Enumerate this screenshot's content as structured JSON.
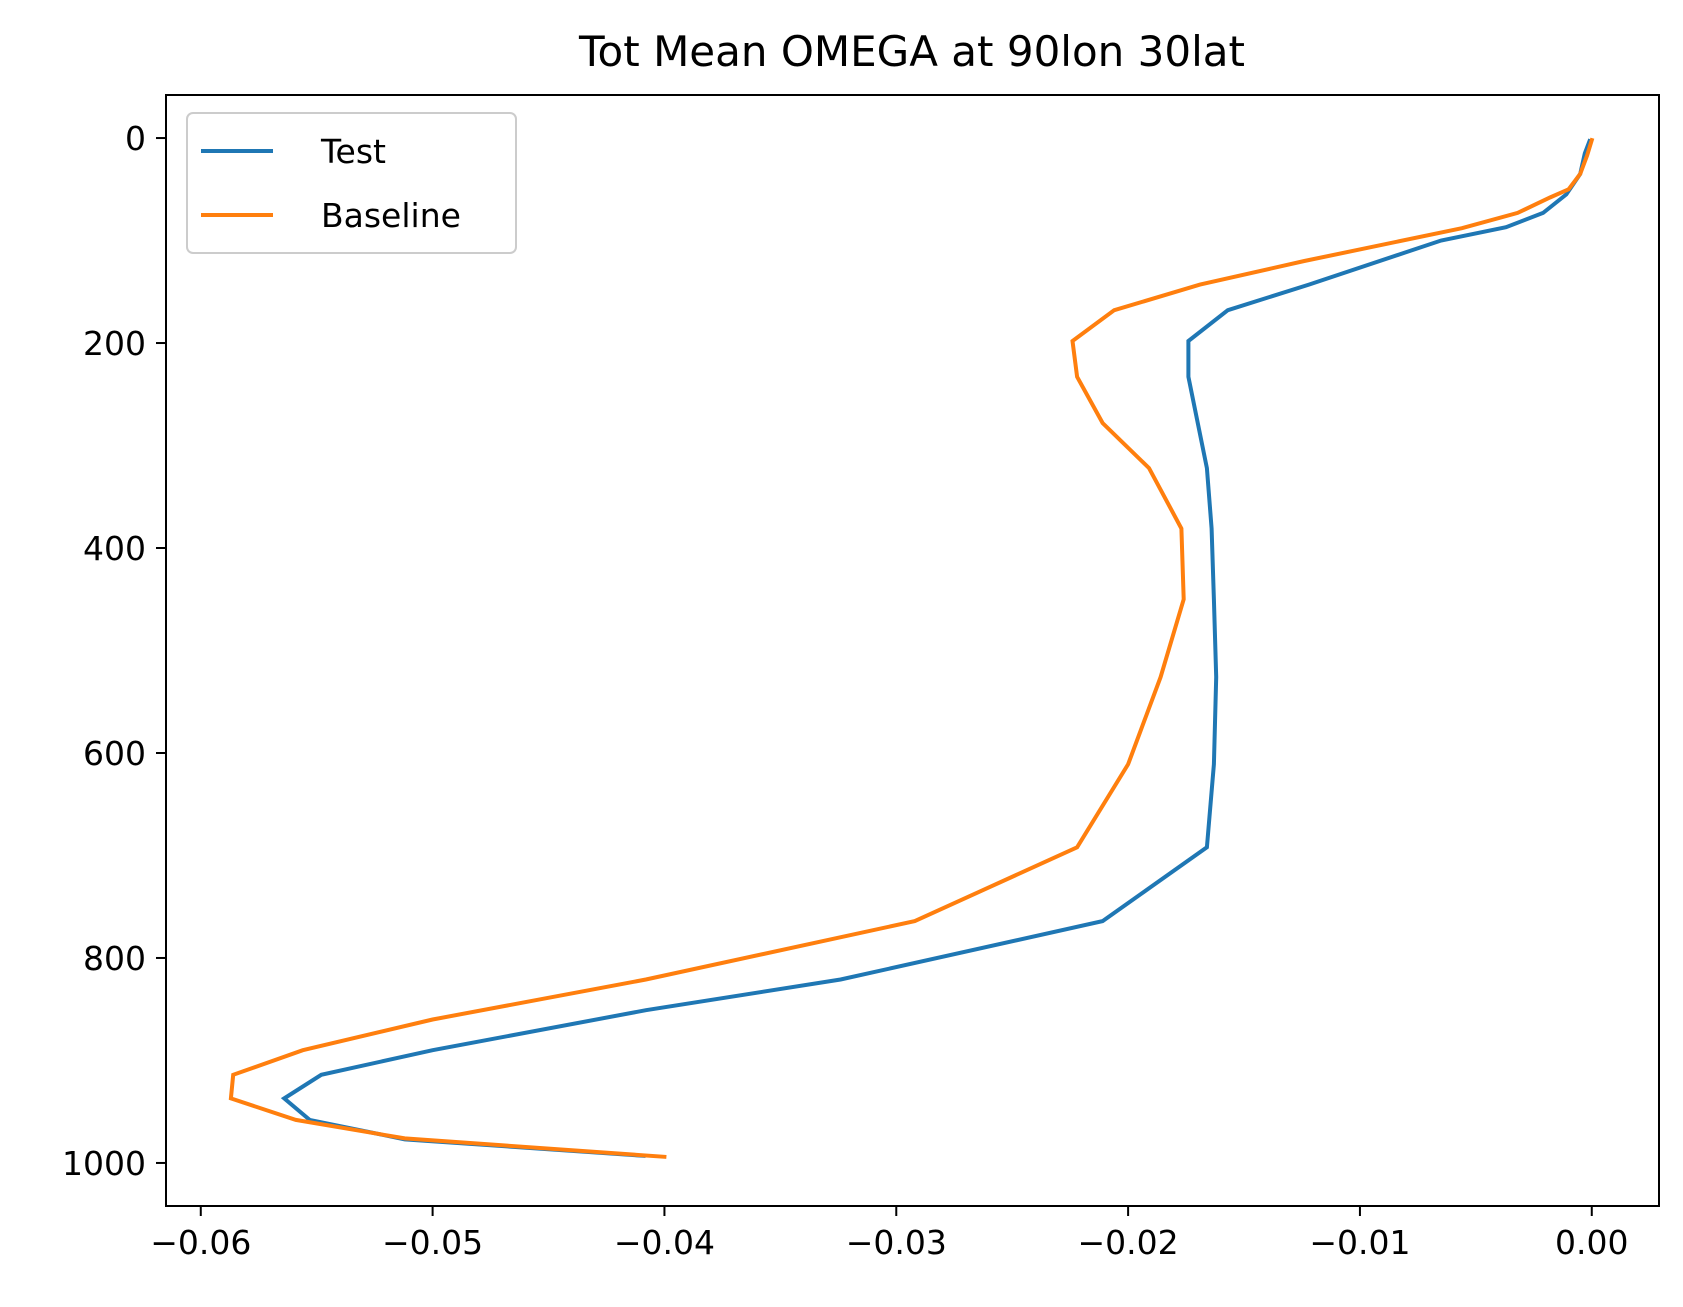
{
  "chart_data": {
    "type": "line",
    "title": "Tot Mean OMEGA at 90lon 30lat",
    "xlabel": "",
    "ylabel": "",
    "xlim": [
      -0.0615,
      0.0029
    ],
    "ylim": [
      1042,
      -42
    ],
    "y_inverted": true,
    "grid": false,
    "legend_position": "upper-left",
    "xticks": [
      {
        "value": -0.06,
        "label": "−0.06"
      },
      {
        "value": -0.05,
        "label": "−0.05"
      },
      {
        "value": -0.04,
        "label": "−0.04"
      },
      {
        "value": -0.03,
        "label": "−0.03"
      },
      {
        "value": -0.02,
        "label": "−0.02"
      },
      {
        "value": -0.01,
        "label": "−0.01"
      },
      {
        "value": 0.0,
        "label": "0.00"
      }
    ],
    "yticks": [
      {
        "value": 0,
        "label": "0"
      },
      {
        "value": 200,
        "label": "200"
      },
      {
        "value": 400,
        "label": "400"
      },
      {
        "value": 600,
        "label": "600"
      },
      {
        "value": 800,
        "label": "800"
      },
      {
        "value": 1000,
        "label": "1000"
      }
    ],
    "series": [
      {
        "name": "Test",
        "color": "#1f77b4",
        "x": [
          -0.0001,
          -0.0003,
          -0.0005,
          -0.0011,
          -0.0021,
          -0.0037,
          -0.0065,
          -0.0122,
          -0.0157,
          -0.0174,
          -0.0174,
          -0.0166,
          -0.0164,
          -0.0163,
          -0.0162,
          -0.0163,
          -0.0166,
          -0.0211,
          -0.0324,
          -0.0408,
          -0.05,
          -0.0548,
          -0.0564,
          -0.0553,
          -0.0512,
          -0.0409
        ],
        "y": [
          3,
          15,
          35,
          55,
          73,
          87,
          100,
          143,
          168,
          198,
          233,
          322,
          381,
          450,
          526,
          611,
          692,
          764,
          821,
          851,
          890,
          914,
          937,
          958,
          977,
          993
        ]
      },
      {
        "name": "Baseline",
        "color": "#ff7f0e",
        "x": [
          0.0,
          -0.0002,
          -0.0005,
          -0.001,
          -0.0018,
          -0.0032,
          -0.0056,
          -0.0124,
          -0.0169,
          -0.0206,
          -0.0224,
          -0.0222,
          -0.0211,
          -0.0191,
          -0.0177,
          -0.0176,
          -0.0186,
          -0.02,
          -0.0222,
          -0.0292,
          -0.0408,
          -0.05,
          -0.0556,
          -0.0586,
          -0.0587,
          -0.0559,
          -0.0512,
          -0.04
        ],
        "y": [
          2,
          17,
          35,
          50,
          58,
          73,
          88,
          120,
          143,
          168,
          198,
          233,
          278,
          322,
          381,
          450,
          526,
          611,
          692,
          764,
          821,
          860,
          890,
          914,
          937,
          958,
          976,
          994
        ]
      }
    ]
  }
}
